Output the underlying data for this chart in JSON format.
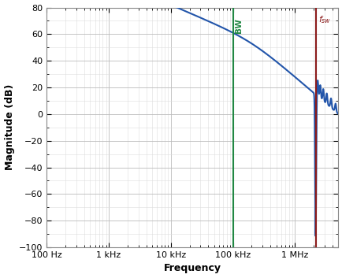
{
  "title": "",
  "xlabel": "Frequency",
  "ylabel": "Magnitude (dB)",
  "freq_min": 100,
  "freq_max": 5000000,
  "ylim": [
    -100,
    80
  ],
  "yticks": [
    -100,
    -80,
    -60,
    -40,
    -20,
    0,
    20,
    40,
    60,
    80
  ],
  "xtick_freqs": [
    100,
    1000,
    10000,
    100000,
    1000000
  ],
  "xtick_labels": [
    "100 Hz",
    "1 kHz",
    "10 kHz",
    "100 kHz",
    "1 MHz"
  ],
  "bw_freq": 100000,
  "fsw_freq": 2200000,
  "line_color": "#2255aa",
  "bw_color": "#228844",
  "fsw_color": "#8B1A1A",
  "grid_major_color": "#bbbbbb",
  "grid_minor_color": "#dddddd",
  "bg_color": "#ffffff",
  "gain_dc": 62,
  "crossover_freq": 100000,
  "bw_label": "BW",
  "fsw_label": "f_{sw}"
}
